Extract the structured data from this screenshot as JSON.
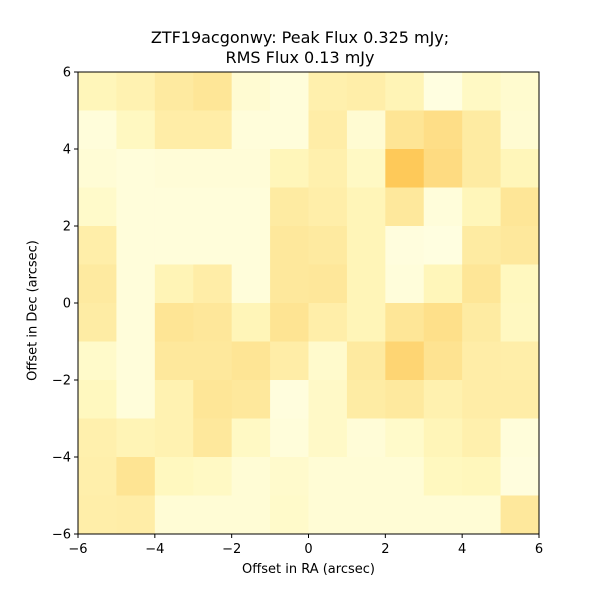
{
  "chart_data": {
    "type": "heatmap",
    "title_lines": [
      "ZTF19acgonwy: Peak Flux 0.325 mJy;",
      "RMS Flux 0.13 mJy"
    ],
    "xlabel": "Offset in RA (arcsec)",
    "ylabel": "Offset in Dec (arcsec)",
    "xlim": [
      -6,
      6
    ],
    "ylim": [
      -6,
      6
    ],
    "xticks": [
      -6,
      -4,
      -2,
      0,
      2,
      4,
      6
    ],
    "yticks": [
      -6,
      -4,
      -2,
      0,
      2,
      4,
      6
    ],
    "xtick_labels": [
      "−6",
      "−4",
      "−2",
      "0",
      "2",
      "4",
      "6"
    ],
    "ytick_labels": [
      "−6",
      "−4",
      "−2",
      "0",
      "2",
      "4",
      "6"
    ],
    "colormap": "YlOrBr",
    "grid": false,
    "cell_rows_top_to_bottom": [
      [
        0.16,
        0.2,
        0.28,
        0.32,
        0.07,
        0.04,
        0.22,
        0.24,
        0.18,
        0.02,
        0.12,
        0.08
      ],
      [
        0.04,
        0.13,
        0.25,
        0.25,
        0.04,
        0.04,
        0.25,
        0.07,
        0.33,
        0.38,
        0.27,
        0.07
      ],
      [
        0.06,
        0.04,
        0.05,
        0.05,
        0.05,
        0.16,
        0.22,
        0.12,
        0.52,
        0.4,
        0.27,
        0.16
      ],
      [
        0.1,
        0.04,
        0.04,
        0.04,
        0.04,
        0.27,
        0.24,
        0.17,
        0.3,
        0.04,
        0.16,
        0.32
      ],
      [
        0.24,
        0.04,
        0.04,
        0.04,
        0.04,
        0.3,
        0.28,
        0.17,
        0.03,
        0.02,
        0.27,
        0.3
      ],
      [
        0.28,
        0.04,
        0.18,
        0.25,
        0.04,
        0.3,
        0.31,
        0.17,
        0.04,
        0.16,
        0.32,
        0.14
      ],
      [
        0.26,
        0.04,
        0.33,
        0.31,
        0.17,
        0.34,
        0.24,
        0.17,
        0.32,
        0.37,
        0.27,
        0.13
      ],
      [
        0.1,
        0.04,
        0.3,
        0.3,
        0.33,
        0.25,
        0.09,
        0.28,
        0.44,
        0.35,
        0.25,
        0.24
      ],
      [
        0.14,
        0.04,
        0.2,
        0.32,
        0.3,
        0.03,
        0.11,
        0.26,
        0.29,
        0.21,
        0.25,
        0.25
      ],
      [
        0.22,
        0.18,
        0.2,
        0.3,
        0.12,
        0.04,
        0.11,
        0.05,
        0.1,
        0.17,
        0.22,
        0.04
      ],
      [
        0.23,
        0.34,
        0.14,
        0.12,
        0.06,
        0.09,
        0.06,
        0.06,
        0.06,
        0.14,
        0.15,
        0.03
      ],
      [
        0.24,
        0.25,
        0.06,
        0.06,
        0.06,
        0.1,
        0.06,
        0.06,
        0.06,
        0.06,
        0.06,
        0.3
      ]
    ]
  }
}
